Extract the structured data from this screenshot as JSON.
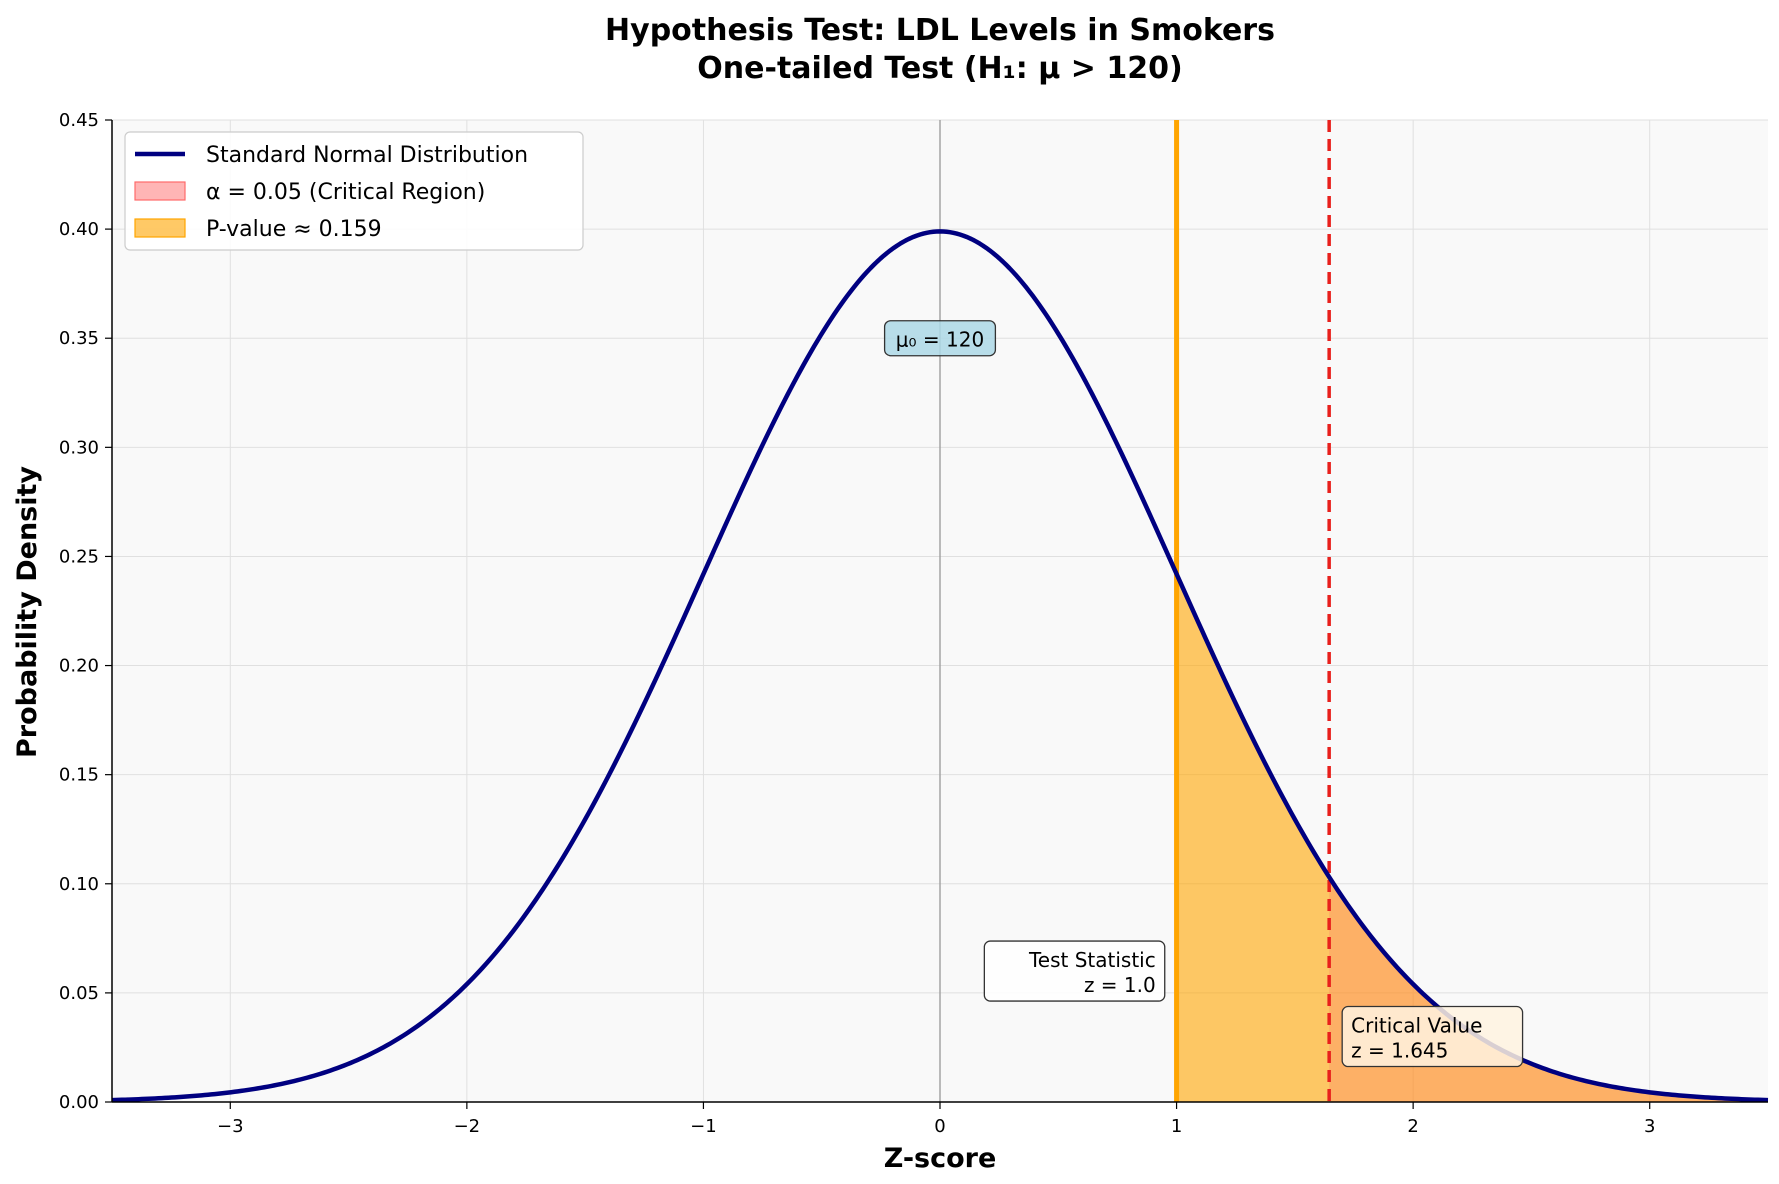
{
  "chart_data": {
    "type": "area",
    "title": "Hypothesis Test: LDL Levels in Smokers",
    "subtitle": "One-tailed Test (H₁: μ > 120)",
    "xlabel": "Z-score",
    "ylabel": "Probability Density",
    "xlim": [
      -3.5,
      3.5
    ],
    "ylim": [
      0,
      0.45
    ],
    "xticks": [
      -3,
      -2,
      -1,
      0,
      1,
      2,
      3
    ],
    "xtick_labels": [
      "−3",
      "−2",
      "−1",
      "0",
      "1",
      "2",
      "3"
    ],
    "yticks": [
      0.0,
      0.05,
      0.1,
      0.15,
      0.2,
      0.25,
      0.3,
      0.35,
      0.4,
      0.45
    ],
    "ytick_labels": [
      "0.00",
      "0.05",
      "0.10",
      "0.15",
      "0.20",
      "0.25",
      "0.30",
      "0.35",
      "0.40",
      "0.45"
    ],
    "grid": true,
    "legend_position": "top-left",
    "series": [
      {
        "name": "Standard Normal Distribution",
        "kind": "line",
        "color": "#000080",
        "mean": 0,
        "sd": 1
      },
      {
        "name": "α = 0.05 (Critical Region)",
        "kind": "fill",
        "color": "#ff6b6b",
        "x_from": 1.645
      },
      {
        "name": "P-value ≈ 0.159",
        "kind": "fill",
        "color": "#ffa500",
        "x_from": 1.0
      }
    ],
    "reference_lines": [
      {
        "name": "mean",
        "x": 0,
        "color": "#999999",
        "style": "solid"
      },
      {
        "name": "test-statistic",
        "x": 1.0,
        "color": "#ffa500",
        "style": "solid"
      },
      {
        "name": "critical-value",
        "x": 1.645,
        "color": "#e8201c",
        "style": "dashed"
      }
    ],
    "annotations": [
      {
        "name": "mu0",
        "text": [
          "μ₀ = 120"
        ],
        "x": 0,
        "y": 0.35,
        "align": "center",
        "bg": "#add8e6"
      },
      {
        "name": "test-statistic",
        "text": [
          "Test Statistic",
          "z = 1.0"
        ],
        "x": 0.95,
        "y": 0.06,
        "align": "right",
        "bg": "#ffffff"
      },
      {
        "name": "critical-value",
        "text": [
          "Critical Value",
          "z = 1.645"
        ],
        "x": 1.7,
        "y": 0.03,
        "align": "left",
        "bg": "#fff3e0"
      }
    ]
  }
}
